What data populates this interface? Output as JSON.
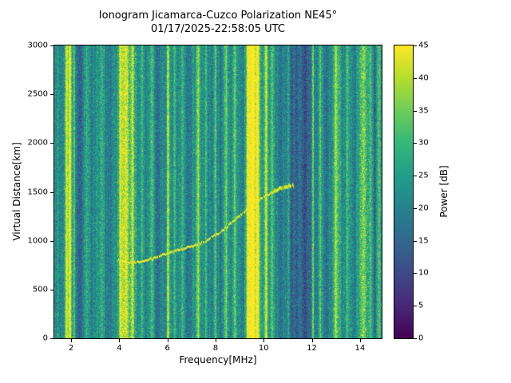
{
  "title": {
    "line1": "Ionogram Jicamarca-Cuzco Polarization NE45°",
    "line2": "01/17/2025-22:58:05 UTC"
  },
  "chart_data": {
    "type": "heatmap",
    "title": "Ionogram Jicamarca-Cuzco Polarization NE45°",
    "subtitle": "01/17/2025-22:58:05 UTC",
    "xlabel": "Frequency[MHz]",
    "ylabel": "Virtual Distance[km]",
    "colorbar_label": "Power [dB]",
    "xlim": [
      1.3,
      14.9
    ],
    "ylim": [
      0,
      3000
    ],
    "clim": [
      0,
      45
    ],
    "xticks": [
      2,
      4,
      6,
      8,
      10,
      12,
      14
    ],
    "yticks": [
      0,
      500,
      1000,
      1500,
      2000,
      2500,
      3000
    ],
    "cticks": [
      0,
      5,
      10,
      15,
      20,
      25,
      30,
      35,
      40,
      45
    ],
    "grid": false,
    "legend": "colorbar-right",
    "colormap": "viridis",
    "colormap_stops": [
      "#440154",
      "#482878",
      "#3e4a89",
      "#31688e",
      "#26828e",
      "#1f9e89",
      "#35b779",
      "#6dcd59",
      "#b4de2c",
      "#fde725"
    ],
    "background_power_db": {
      "mean": 23,
      "column_jitter": 3,
      "pixel_jitter": 6.5
    },
    "rfi_bands": [
      [
        1.82,
        0.04,
        22
      ],
      [
        1.95,
        0.04,
        24
      ],
      [
        2.12,
        0.03,
        12
      ],
      [
        2.62,
        0.05,
        6
      ],
      [
        3.25,
        0.06,
        5
      ],
      [
        4.05,
        0.05,
        16
      ],
      [
        4.25,
        0.12,
        18
      ],
      [
        4.55,
        0.06,
        16
      ],
      [
        4.95,
        0.03,
        8
      ],
      [
        5.35,
        0.04,
        10
      ],
      [
        6.02,
        0.04,
        18
      ],
      [
        6.3,
        0.03,
        10
      ],
      [
        6.65,
        0.04,
        8
      ],
      [
        7.28,
        0.05,
        16
      ],
      [
        7.6,
        0.03,
        9
      ],
      [
        8.0,
        0.03,
        8
      ],
      [
        8.45,
        0.05,
        12
      ],
      [
        8.8,
        0.04,
        10
      ],
      [
        9.35,
        0.06,
        22
      ],
      [
        9.55,
        0.1,
        25
      ],
      [
        9.75,
        0.06,
        22
      ],
      [
        10.1,
        0.05,
        18
      ],
      [
        10.35,
        0.04,
        10
      ],
      [
        11.05,
        0.03,
        8
      ],
      [
        12.05,
        0.03,
        14
      ],
      [
        12.35,
        0.04,
        8
      ],
      [
        13.0,
        0.07,
        16
      ],
      [
        13.45,
        0.04,
        8
      ],
      [
        14.15,
        0.12,
        12
      ],
      [
        14.45,
        0.05,
        8
      ],
      [
        14.8,
        0.04,
        10
      ]
    ],
    "dark_bands": [
      [
        2.38,
        0.12,
        -8
      ],
      [
        2.85,
        0.1,
        -5
      ],
      [
        3.55,
        0.15,
        -6
      ],
      [
        5.15,
        0.06,
        -5
      ],
      [
        5.6,
        0.08,
        -6
      ],
      [
        6.85,
        0.06,
        -5
      ],
      [
        8.2,
        0.05,
        -5
      ],
      [
        9.05,
        0.05,
        -5
      ],
      [
        10.7,
        0.1,
        -7
      ],
      [
        11.3,
        0.2,
        -9
      ],
      [
        11.75,
        0.15,
        -9
      ],
      [
        12.6,
        0.08,
        -6
      ],
      [
        13.75,
        0.07,
        -6
      ],
      [
        14.62,
        0.04,
        -5
      ]
    ],
    "speckle_zones": [
      [
        4.0,
        4.7
      ],
      [
        9.3,
        9.8
      ],
      [
        14.0,
        14.4
      ]
    ],
    "echo_trace": {
      "power": 43,
      "points": [
        [
          3.95,
          800
        ],
        [
          4.2,
          785
        ],
        [
          4.6,
          780
        ],
        [
          5.0,
          795
        ],
        [
          5.4,
          820
        ],
        [
          5.8,
          855
        ],
        [
          6.2,
          890
        ],
        [
          6.6,
          915
        ],
        [
          7.0,
          945
        ],
        [
          7.4,
          975
        ],
        [
          7.8,
          1030
        ],
        [
          8.2,
          1090
        ],
        [
          8.6,
          1170
        ],
        [
          9.0,
          1260
        ],
        [
          9.4,
          1340
        ],
        [
          9.8,
          1420
        ],
        [
          10.2,
          1480
        ],
        [
          10.6,
          1530
        ],
        [
          11.0,
          1560
        ],
        [
          11.25,
          1570
        ]
      ]
    },
    "faint_trace": {
      "power": 29,
      "points": [
        [
          7.95,
          2380
        ],
        [
          8.45,
          2170
        ]
      ]
    }
  }
}
